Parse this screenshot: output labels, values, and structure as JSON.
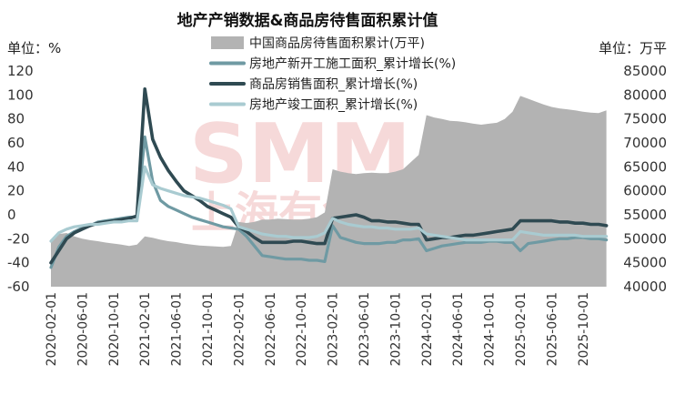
{
  "chart_data": {
    "type": "area",
    "title": "地产产销数据&商品房待售面积累计值",
    "left_unit": "单位：%",
    "right_unit": "单位：万平",
    "watermark": [
      "SMM",
      "上海有色网"
    ],
    "y_left": {
      "lim": [
        -60,
        120
      ],
      "ticks": [
        -60,
        -40,
        -20,
        0,
        20,
        40,
        60,
        80,
        100,
        120
      ]
    },
    "y_right": {
      "lim": [
        40000,
        85000
      ],
      "ticks": [
        40000,
        45000,
        50000,
        55000,
        60000,
        65000,
        70000,
        75000,
        80000,
        85000
      ]
    },
    "x_ticks": [
      "2020-02-01",
      "2020-06-01",
      "2020-10-01",
      "2021-02-01",
      "2021-06-01",
      "2021-10-01",
      "2022-02-01",
      "2022-06-01",
      "2022-10-01",
      "2023-02-01",
      "2023-06-01",
      "2023-10-01",
      "2024-02-01",
      "2024-06-01",
      "2024-10-01",
      "2025-02-01",
      "2025-06-01",
      "2025-10-01"
    ],
    "x_start": "2020-02-01",
    "x_end": "2025-12-01",
    "series": [
      {
        "name": "中国商品房待售面积累计(万平)",
        "type": "area",
        "axis": "right",
        "color": "#b3b3b3",
        "values": [
          49800,
          51000,
          51200,
          50500,
          50000,
          49700,
          49500,
          49200,
          49000,
          48800,
          48500,
          48800,
          50500,
          50200,
          49800,
          49500,
          49300,
          49000,
          48800,
          48600,
          48500,
          48400,
          48300,
          48500,
          53500,
          53300,
          53500,
          54000,
          54000,
          54200,
          54100,
          54000,
          54000,
          54200,
          54500,
          55500,
          64500,
          64000,
          63700,
          63500,
          63700,
          63800,
          63700,
          63700,
          64000,
          64500,
          66000,
          67500,
          75800,
          75300,
          75000,
          74600,
          74500,
          74300,
          74000,
          73800,
          74000,
          74200,
          75000,
          76500,
          79800,
          79200,
          78600,
          78000,
          77500,
          77200,
          77000,
          76800,
          76500,
          76300,
          76200,
          76800
        ]
      },
      {
        "name": "房地产新开工施工面积_累计增长(%)",
        "type": "line",
        "axis": "left",
        "color": "#6f9aa3",
        "values": [
          -44,
          -27,
          -18,
          -14,
          -11,
          -9,
          -6,
          -5,
          -4,
          -3,
          -2,
          -2,
          65,
          28,
          12,
          7,
          4,
          1,
          -2,
          -4,
          -6,
          -8,
          -10,
          -11,
          -12,
          -18,
          -26,
          -34,
          -35,
          -36,
          -37,
          -37,
          -37,
          -38,
          -38,
          -39,
          -9,
          -19,
          -21,
          -23,
          -24,
          -24,
          -24,
          -23,
          -23,
          -21,
          -21,
          -20,
          -30,
          -28,
          -26,
          -25,
          -24,
          -23,
          -23,
          -23,
          -22,
          -22,
          -23,
          -23,
          -30,
          -24,
          -23,
          -22,
          -21,
          -20,
          -20,
          -19,
          -19,
          -20,
          -20,
          -21
        ]
      },
      {
        "name": "商品房销售面积_累计增长(%)",
        "type": "line",
        "axis": "left",
        "color": "#2f4a52",
        "values": [
          -40,
          -30,
          -20,
          -15,
          -12,
          -9,
          -7,
          -6,
          -5,
          -4,
          -3,
          -1,
          105,
          63,
          48,
          37,
          28,
          20,
          16,
          12,
          7,
          4,
          1,
          -2,
          -10,
          -14,
          -19,
          -23,
          -23,
          -23,
          -23,
          -22,
          -22,
          -23,
          -24,
          -24,
          -3,
          -2,
          -1,
          0,
          -2,
          -5,
          -5,
          -6,
          -6,
          -7,
          -8,
          -8,
          -21,
          -20,
          -19,
          -19,
          -18,
          -17,
          -17,
          -16,
          -15,
          -14,
          -13,
          -12,
          -5,
          -5,
          -5,
          -5,
          -5,
          -6,
          -6,
          -7,
          -7,
          -8,
          -8,
          -9
        ]
      },
      {
        "name": "房地产竣工面积_累计增长(%)",
        "type": "line",
        "axis": "left",
        "color": "#a9cbd1",
        "values": [
          -22,
          -15,
          -12,
          -10,
          -9,
          -8,
          -8,
          -7,
          -6,
          -6,
          -5,
          -5,
          40,
          25,
          22,
          20,
          18,
          16,
          15,
          14,
          12,
          10,
          8,
          5,
          -10,
          -12,
          -14,
          -16,
          -17,
          -18,
          -18,
          -19,
          -19,
          -19,
          -18,
          -15,
          -3,
          -6,
          -8,
          -9,
          -10,
          -10,
          -11,
          -11,
          -12,
          -12,
          -12,
          -11,
          -16,
          -17,
          -18,
          -19,
          -20,
          -21,
          -21,
          -21,
          -21,
          -21,
          -21,
          -21,
          -14,
          -15,
          -16,
          -17,
          -17,
          -17,
          -17,
          -17,
          -18,
          -18,
          -18,
          -18
        ]
      }
    ],
    "grid": false,
    "legend_position": "top-center"
  }
}
